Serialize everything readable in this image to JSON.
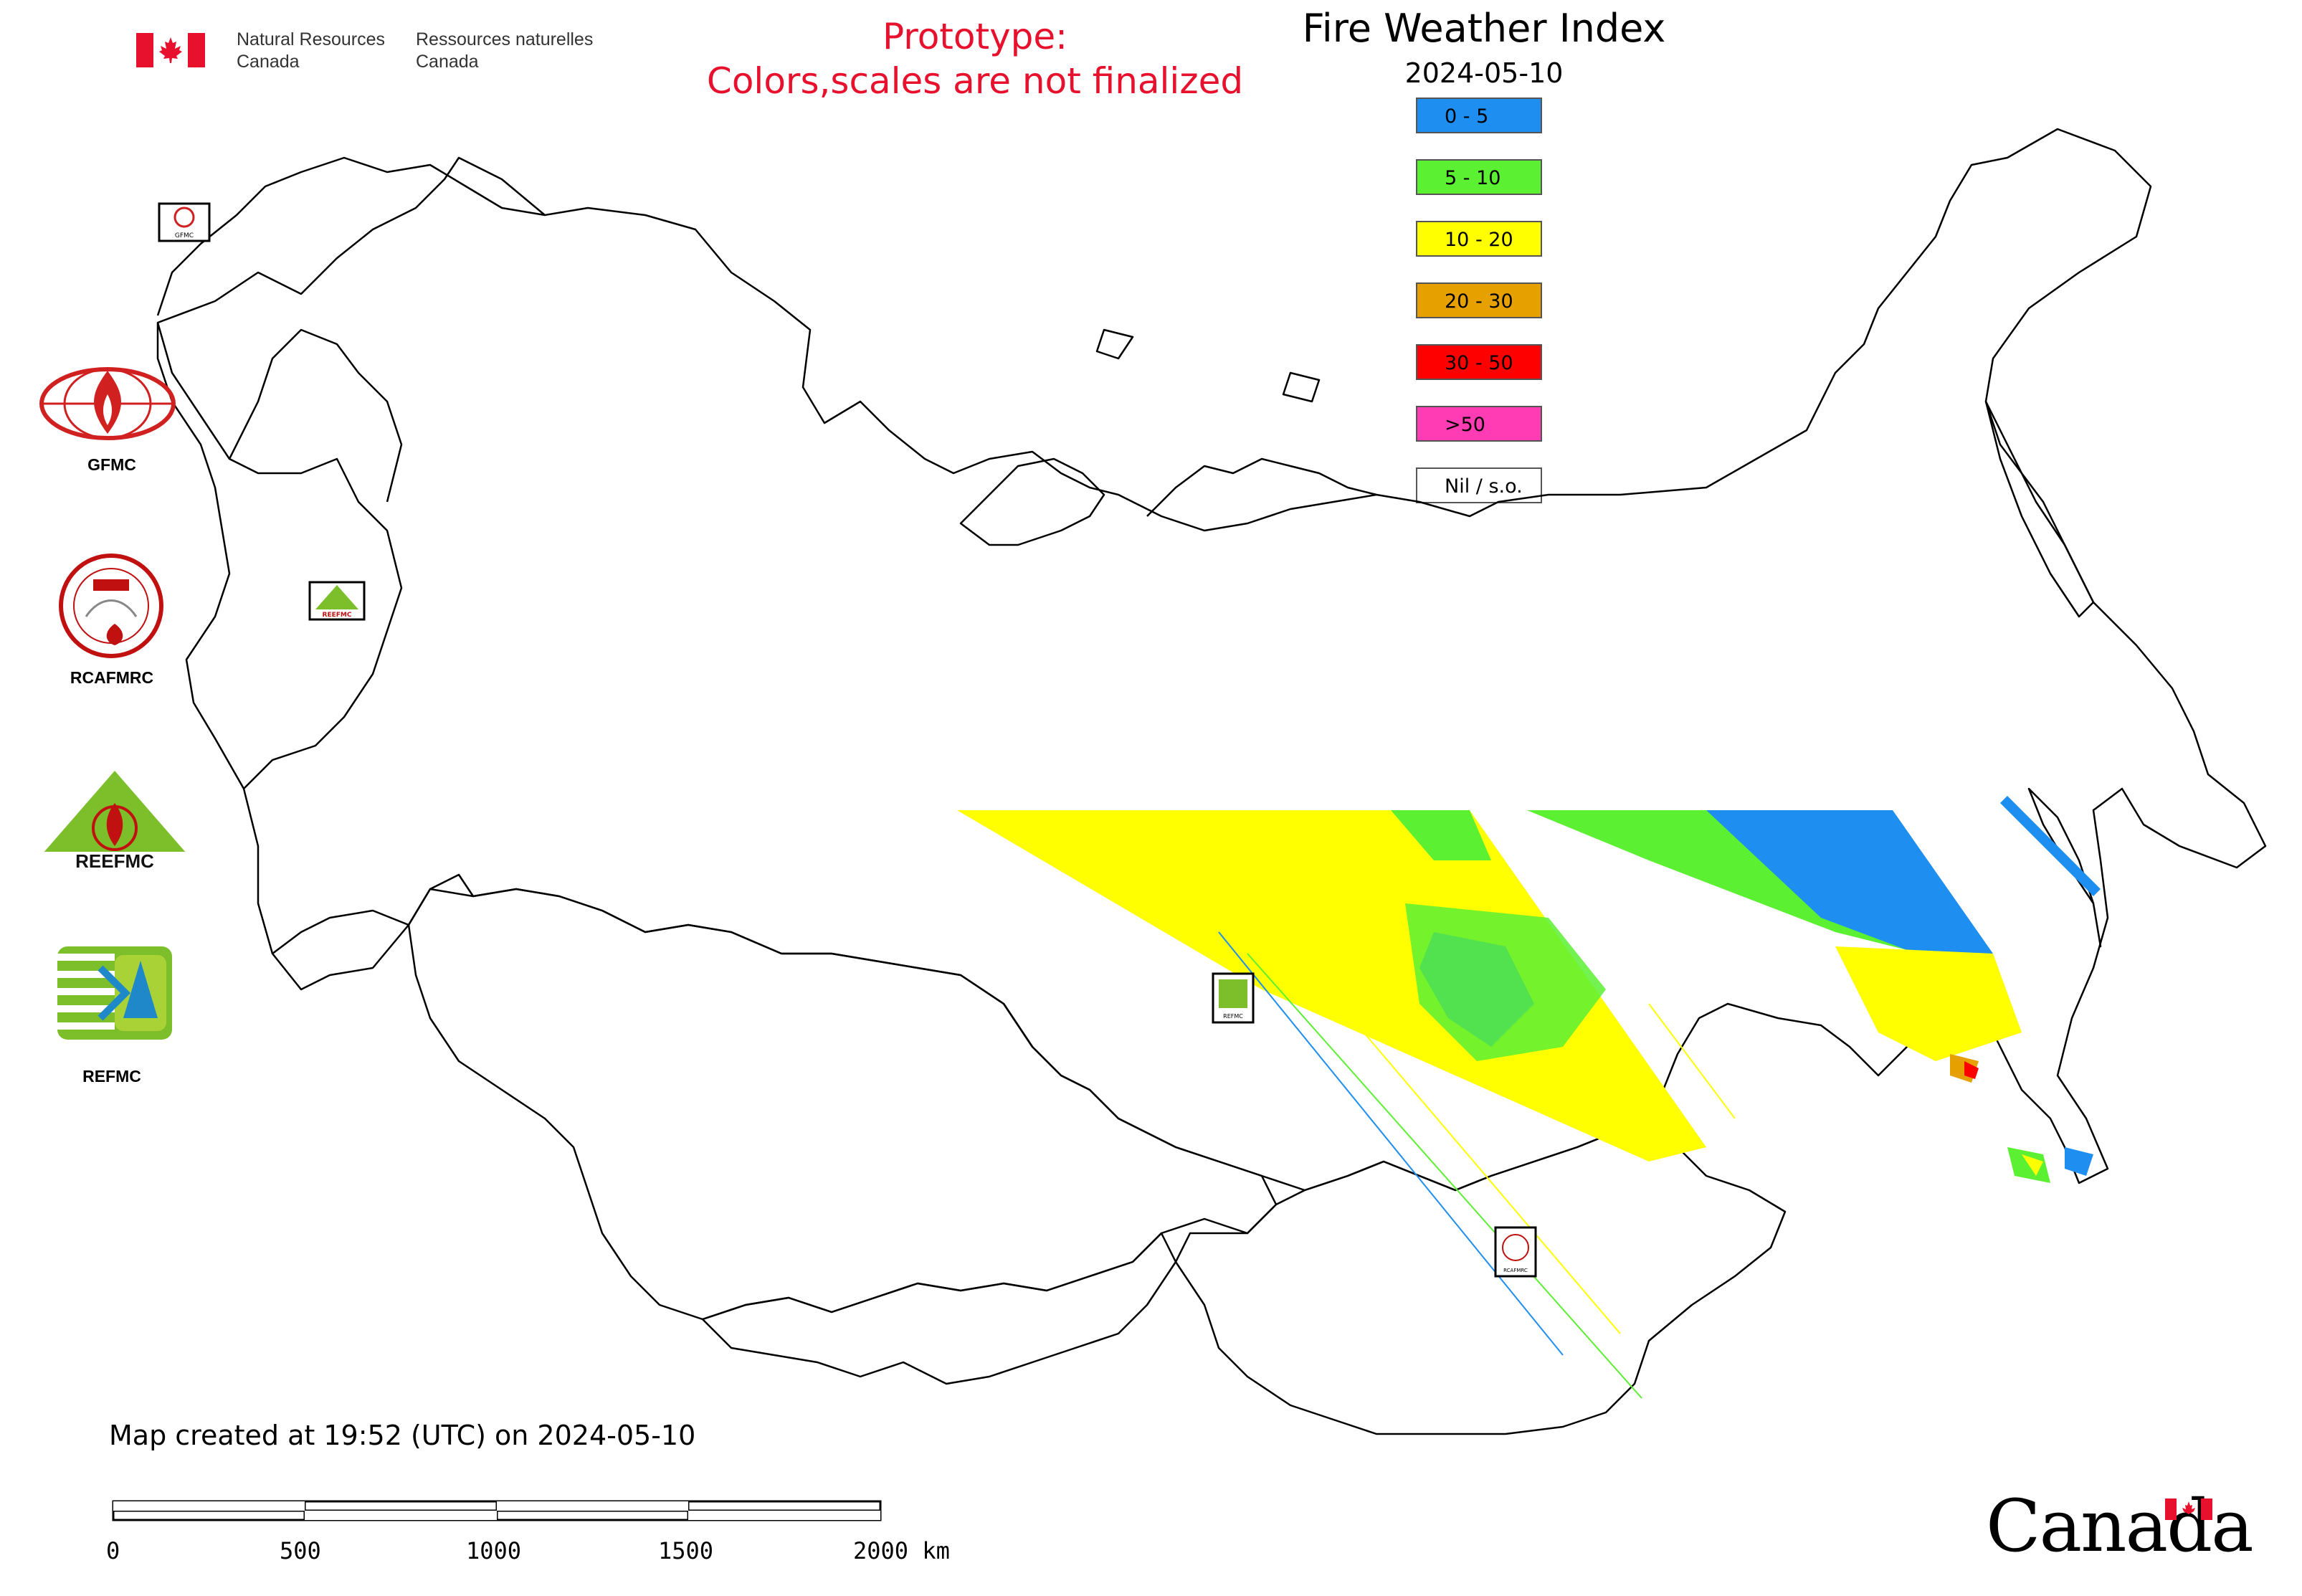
{
  "header": {
    "signature_en": [
      "Natural Resources",
      "Canada"
    ],
    "signature_fr": [
      "Ressources naturelles",
      "Canada"
    ],
    "prototype_lines": [
      "Prototype:",
      "Colors,scales are not finalized"
    ],
    "title": "Fire Weather Index",
    "date": "2024-05-10"
  },
  "legend": [
    {
      "label": "0 - 5",
      "color": "#1e8ef0"
    },
    {
      "label": "5 - 10",
      "color": "#5cf032"
    },
    {
      "label": "10 - 20",
      "color": "#ffff00"
    },
    {
      "label": "20 - 30",
      "color": "#e6a000"
    },
    {
      "label": "30 - 50",
      "color": "#ff0000"
    },
    {
      "label": ">50",
      "color": "#ff3cb4"
    },
    {
      "label": "Nil / s.o.",
      "color": "#ffffff"
    }
  ],
  "side_logos": [
    {
      "label": "GFMC",
      "icon": "gfmc-globe-flame-logo"
    },
    {
      "label": "RCAFMRC",
      "icon": "rcafmrc-round-seal-logo"
    },
    {
      "label": "",
      "icon": "reefmc-triangle-logo",
      "wordmark": "REEFMC"
    },
    {
      "label": "REFMC",
      "icon": "refmc-stripes-logo"
    }
  ],
  "map_markers": [
    {
      "name": "GFMC",
      "text": "GFMC"
    },
    {
      "name": "REEFMC",
      "text": "REEFMC"
    },
    {
      "name": "REFMC",
      "text": "REFMC"
    },
    {
      "name": "RCAFMRC",
      "text": "RCAFMRC"
    }
  ],
  "footer": {
    "created": "Map created at 19:52 (UTC) on 2024-05-10",
    "scale_labels": [
      "0",
      "500",
      "1000",
      "1500",
      "2000 km"
    ],
    "wordmark": "Canada"
  }
}
